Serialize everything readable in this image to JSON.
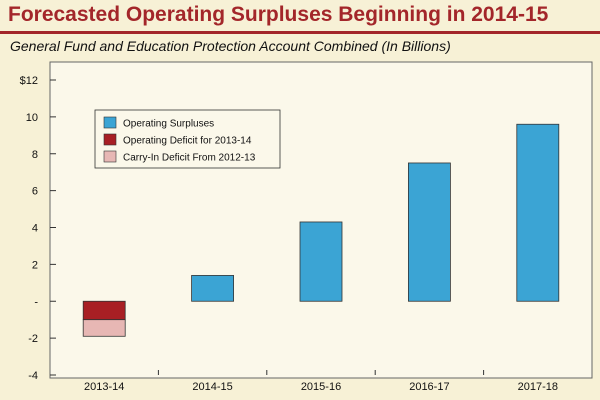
{
  "header": {
    "title": "Forecasted Operating Surpluses Beginning in 2014-15",
    "subtitle": "General Fund and Education Protection Account Combined (In Billions)"
  },
  "chart_data": {
    "type": "bar",
    "stacked": true,
    "title": "Forecasted Operating Surpluses Beginning in 2014-15",
    "subtitle": "General Fund and Education Protection Account Combined (In Billions)",
    "categories": [
      "2013-14",
      "2014-15",
      "2015-16",
      "2016-17",
      "2017-18"
    ],
    "series": [
      {
        "name": "Operating Surpluses",
        "color": "#3ba4d4",
        "values": [
          0,
          1.4,
          4.3,
          7.5,
          9.6
        ]
      },
      {
        "name": "Operating Deficit for 2013-14",
        "color": "#a81f24",
        "values": [
          -1.0,
          0,
          0,
          0,
          0
        ]
      },
      {
        "name": "Carry-In Deficit From 2012-13",
        "color": "#e7b7b4",
        "values": [
          -0.9,
          0,
          0,
          0,
          0
        ]
      }
    ],
    "ylim": [
      -4,
      12
    ],
    "yticks": [
      {
        "value": 12,
        "label": "$12"
      },
      {
        "value": 10,
        "label": "10"
      },
      {
        "value": 8,
        "label": "8"
      },
      {
        "value": 6,
        "label": "6"
      },
      {
        "value": 4,
        "label": "4"
      },
      {
        "value": 2,
        "label": "2"
      },
      {
        "value": 0,
        "label": "-"
      },
      {
        "value": -2,
        "label": "-2"
      },
      {
        "value": -4,
        "label": "-4"
      }
    ],
    "xlabel": "",
    "ylabel": "",
    "grid": false,
    "legend_position": "top-left"
  }
}
